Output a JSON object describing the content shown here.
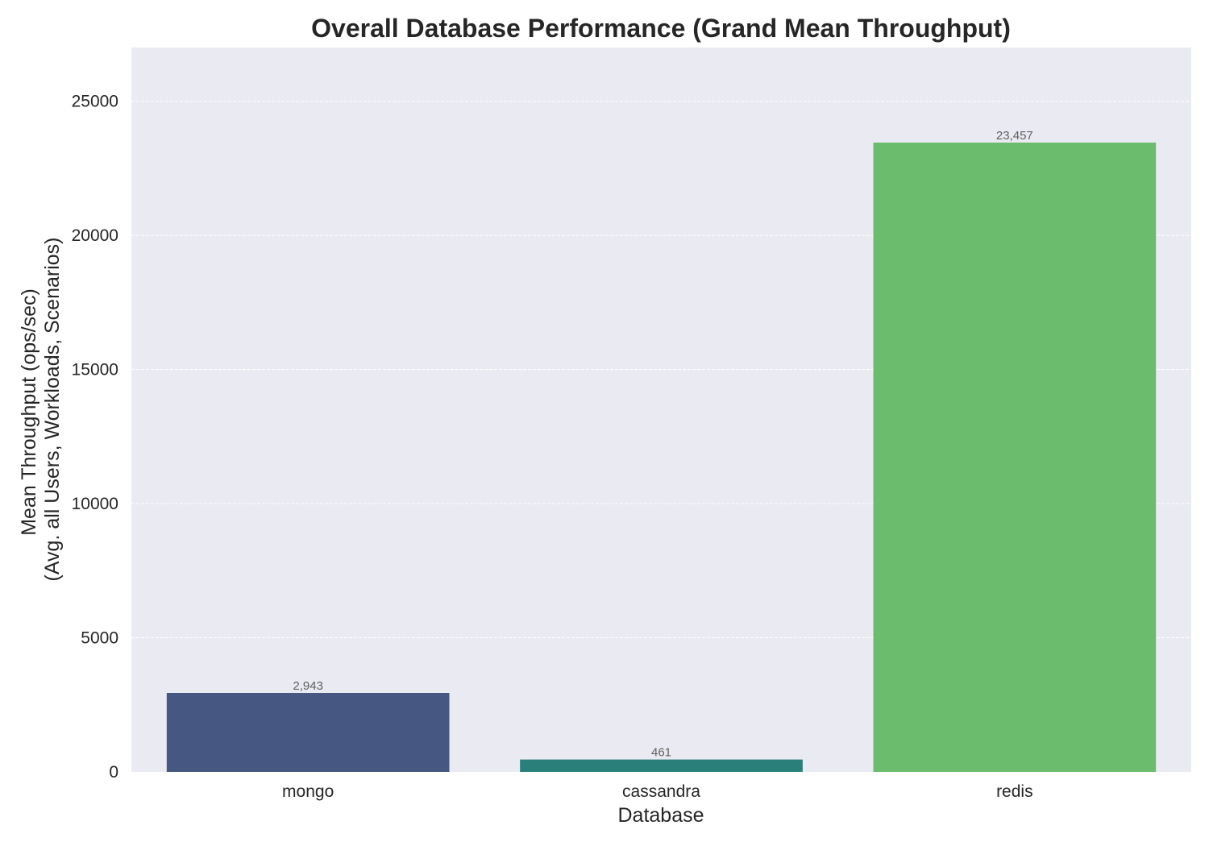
{
  "chart_data": {
    "type": "bar",
    "title": "Overall Database Performance (Grand Mean Throughput)",
    "xlabel": "Database",
    "ylabel_lines": [
      "Mean Throughput (ops/sec)",
      "(Avg. all Users, Workloads, Scenarios)"
    ],
    "categories": [
      "mongo",
      "cassandra",
      "redis"
    ],
    "values": [
      2943,
      461,
      23457
    ],
    "value_labels": [
      "2,943",
      "461",
      "23,457"
    ],
    "colors": [
      "#465782",
      "#2a7f7a",
      "#6bbc6d"
    ],
    "ylim": [
      0,
      27000
    ],
    "yticks": [
      0,
      5000,
      10000,
      15000,
      20000,
      25000
    ],
    "ytick_labels": [
      "0",
      "5000",
      "10000",
      "15000",
      "20000",
      "25000"
    ],
    "grid": true,
    "background_color": "#eaeaf2",
    "legend": "none"
  }
}
